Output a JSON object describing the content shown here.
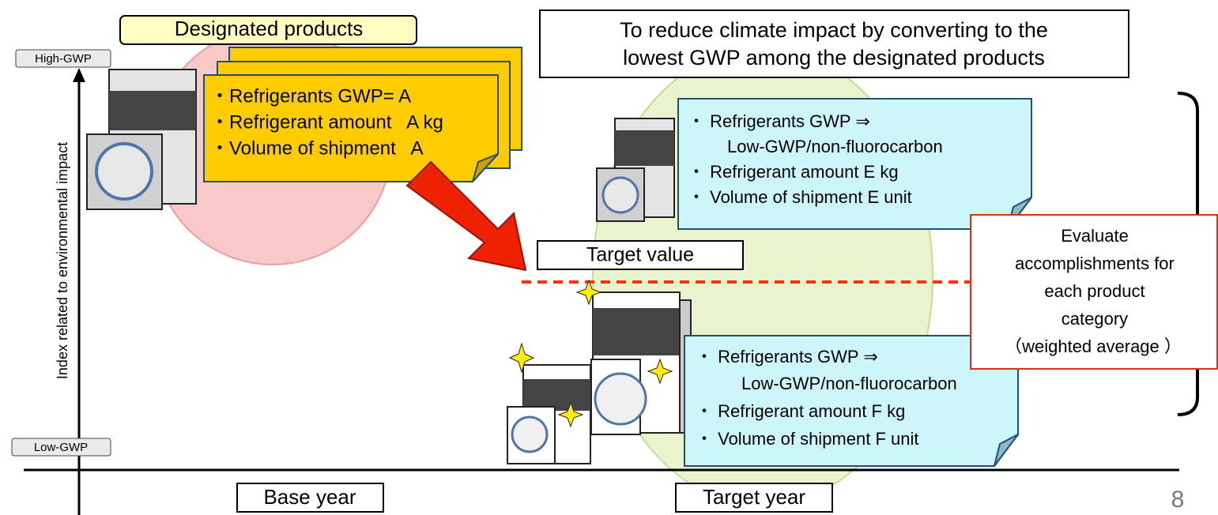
{
  "labels": {
    "designated": "Designated products",
    "high_gwp": "High-GWP",
    "low_gwp": "Low-GWP",
    "y_axis": "Index related to environmental impact",
    "base_year": "Base year",
    "target_year": "Target year",
    "target_value": "Target value",
    "page_number": "8"
  },
  "goal": [
    "To reduce climate impact by converting to the",
    "lowest GWP among the designated products"
  ],
  "base_card": [
    "・Refrigerants GWP= A",
    "・Refrigerant amount   A kg",
    "・Volume of shipment   A"
  ],
  "upper_card": [
    "・ Refrigerants GWP ⇒",
    "Low-GWP/non-fluorocarbon",
    "・ Refrigerant amount E kg",
    "・ Volume of shipment E unit"
  ],
  "lower_card": [
    "・ Refrigerants GWP ⇒",
    "Low-GWP/non-fluorocarbon",
    "・ Refrigerant amount F kg",
    "・ Volume of shipment F unit"
  ],
  "evaluate": [
    "Evaluate",
    "accomplishments for",
    "each product",
    "category",
    "（weighted average ）"
  ]
}
